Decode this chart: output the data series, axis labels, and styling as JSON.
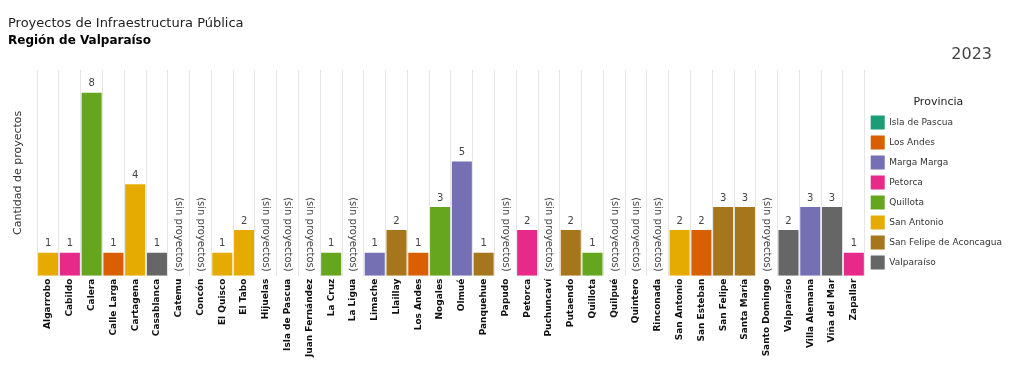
{
  "chart_data": {
    "type": "bar",
    "title": "Proyectos de Infraestructura Pública",
    "subtitle": "Región de Valparaíso",
    "ylabel": "Cantidad de proyectos",
    "legend_title": "Provincia",
    "categories": [
      "Algarrobo",
      "Cabildo",
      "Calera",
      "Calle Larga",
      "Cartagena",
      "Casablanca",
      "Catemu",
      "Concón",
      "El Quisco",
      "El Tabo",
      "Hijuelas",
      "Isla de Pascua",
      "Juan Fernández",
      "La Cruz",
      "La Ligua",
      "Limache",
      "Llaillay",
      "Los Andes",
      "Nogales",
      "Olmué",
      "Panquehue",
      "Papudo",
      "Petorca",
      "Puchuncaví",
      "Putaendo",
      "Quillota",
      "Quilpué",
      "Quintero",
      "Rinconada",
      "San Antonio",
      "San Esteban",
      "San Felipe",
      "Santa María",
      "Santo Domingo",
      "Valparaíso",
      "Villa Alemana",
      "Viña del Mar",
      "Zapallar"
    ],
    "series": [
      {
        "name": "Isla de Pascua",
        "color": "#1b9e77",
        "values": [
          null,
          null,
          null,
          null,
          null,
          null,
          null,
          null,
          null,
          null,
          null,
          null,
          null,
          null,
          null,
          null,
          null,
          null,
          null,
          null,
          null,
          null,
          null,
          null,
          null,
          null,
          null,
          null,
          null,
          null,
          null,
          null,
          null,
          null,
          null,
          null,
          null,
          null
        ]
      },
      {
        "name": "Los Andes",
        "color": "#d95f02",
        "values": [
          null,
          null,
          null,
          1,
          null,
          null,
          null,
          null,
          null,
          null,
          null,
          null,
          null,
          null,
          null,
          null,
          null,
          1,
          null,
          null,
          null,
          null,
          null,
          null,
          null,
          null,
          null,
          null,
          null,
          null,
          2,
          null,
          null,
          null,
          null,
          null,
          null,
          null
        ]
      },
      {
        "name": "Marga Marga",
        "color": "#7570b3",
        "values": [
          null,
          null,
          null,
          null,
          null,
          null,
          null,
          null,
          null,
          null,
          null,
          null,
          null,
          null,
          null,
          1,
          null,
          null,
          null,
          5,
          null,
          null,
          null,
          null,
          null,
          null,
          null,
          null,
          null,
          null,
          null,
          null,
          null,
          null,
          null,
          3,
          null,
          null
        ]
      },
      {
        "name": "Petorca",
        "color": "#e7298a",
        "values": [
          null,
          1,
          null,
          null,
          null,
          null,
          null,
          null,
          null,
          null,
          null,
          null,
          null,
          null,
          null,
          null,
          null,
          null,
          null,
          null,
          null,
          null,
          2,
          null,
          null,
          null,
          null,
          null,
          null,
          null,
          null,
          null,
          null,
          null,
          null,
          null,
          null,
          1
        ]
      },
      {
        "name": "Quillota",
        "color": "#66a61e",
        "values": [
          null,
          null,
          8,
          null,
          null,
          null,
          null,
          null,
          null,
          null,
          null,
          null,
          null,
          1,
          null,
          null,
          null,
          null,
          3,
          null,
          null,
          null,
          null,
          null,
          null,
          1,
          null,
          null,
          null,
          null,
          null,
          null,
          null,
          null,
          null,
          null,
          null,
          null
        ]
      },
      {
        "name": "San Antonio",
        "color": "#e6ab02",
        "values": [
          1,
          null,
          null,
          null,
          4,
          null,
          null,
          null,
          1,
          2,
          null,
          null,
          null,
          null,
          null,
          null,
          null,
          null,
          null,
          null,
          null,
          null,
          null,
          null,
          null,
          null,
          null,
          null,
          null,
          2,
          null,
          null,
          null,
          null,
          null,
          null,
          null,
          null
        ]
      },
      {
        "name": "San Felipe de Aconcagua",
        "color": "#a6761d",
        "values": [
          null,
          null,
          null,
          null,
          null,
          null,
          null,
          null,
          null,
          null,
          null,
          null,
          null,
          null,
          null,
          null,
          2,
          null,
          null,
          null,
          1,
          null,
          null,
          null,
          2,
          null,
          null,
          null,
          null,
          null,
          null,
          3,
          3,
          null,
          null,
          null,
          null,
          null
        ]
      },
      {
        "name": "Valparaíso",
        "color": "#666666",
        "values": [
          null,
          null,
          null,
          null,
          null,
          1,
          null,
          null,
          null,
          null,
          null,
          null,
          null,
          null,
          null,
          null,
          null,
          null,
          null,
          null,
          null,
          null,
          null,
          null,
          null,
          null,
          null,
          null,
          null,
          null,
          null,
          null,
          null,
          null,
          2,
          null,
          3,
          null
        ]
      }
    ],
    "stacked": true,
    "data_labels": true,
    "grid": "x",
    "legend": "right",
    "tick_labels": "x",
    "annotations": [
      "2023",
      "(sin proyectos)",
      "(sin proyectos)",
      "(sin proyectos)",
      "(sin proyectos)",
      "(sin proyectos)",
      "(sin proyectos)",
      "(sin proyectos)",
      "(sin proyectos)",
      "(sin proyectos)",
      "(sin proyectos)",
      "(sin proyectos)",
      "(sin proyectos)"
    ]
  }
}
